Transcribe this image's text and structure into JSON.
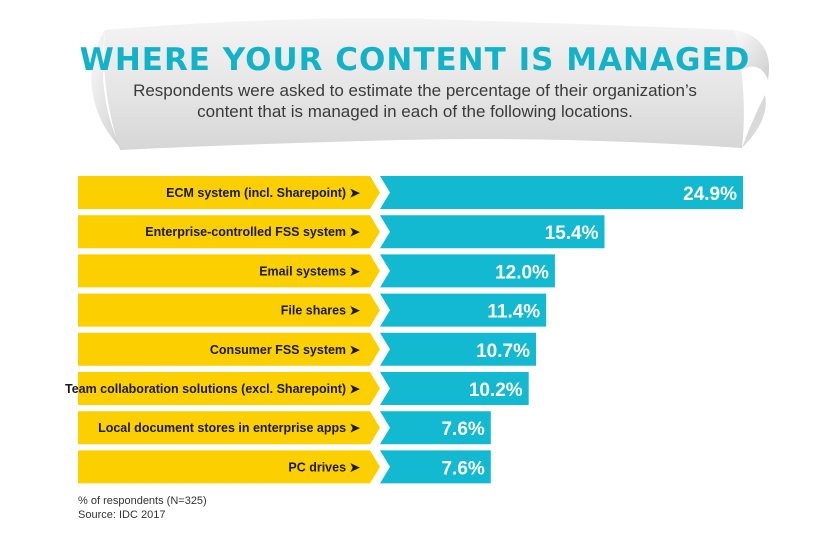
{
  "header": {
    "title": "WHERE YOUR CONTENT IS MANAGED",
    "subtitle": "Respondents were asked to estimate the percentage of their organization’s content that is managed in each of the following locations."
  },
  "colors": {
    "label_band": "#fccf00",
    "bar": "#12b9d1",
    "title": "#12b3c9",
    "banner": "#e3e3e3"
  },
  "chart_data": {
    "type": "bar",
    "orientation": "horizontal",
    "categories": [
      "ECM system (incl. Sharepoint)",
      "Enterprise-controlled FSS system",
      "Email systems",
      "File shares",
      "Consumer FSS system",
      "Team collaboration solutions (excl. Sharepoint)",
      "Local document stores in enterprise apps",
      "PC drives"
    ],
    "values": [
      24.9,
      15.4,
      12.0,
      11.4,
      10.7,
      10.2,
      7.6,
      7.6
    ],
    "value_labels": [
      "24.9%",
      "15.4%",
      "12.0%",
      "11.4%",
      "10.7%",
      "10.2%",
      "7.6%",
      "7.6%"
    ],
    "title": "WHERE YOUR CONTENT IS MANAGED",
    "grid": false,
    "legend": "none"
  },
  "footnote": {
    "line1": "% of respondents (N=325)",
    "line2": "Source: IDC 2017"
  }
}
